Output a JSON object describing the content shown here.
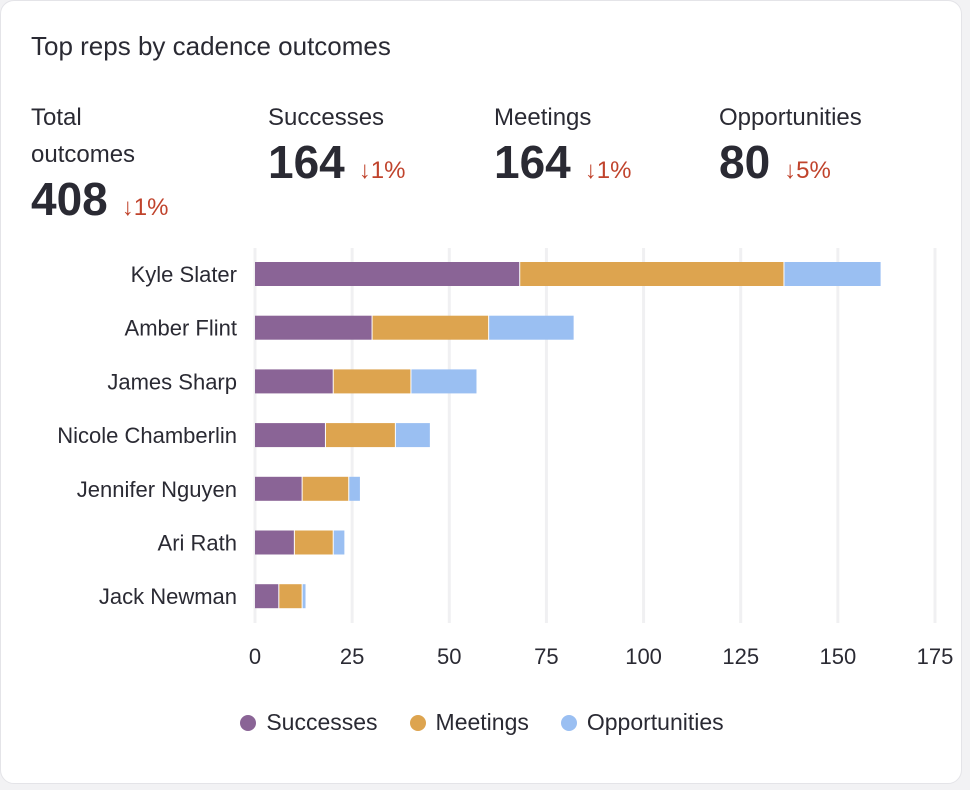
{
  "title": "Top reps by cadence outcomes",
  "stats": [
    {
      "label": "Total outcomes",
      "value": "408",
      "change": "↓1%"
    },
    {
      "label": "Successes",
      "value": "164",
      "change": "↓1%"
    },
    {
      "label": "Meetings",
      "value": "164",
      "change": "↓1%"
    },
    {
      "label": "Opportunities",
      "value": "80",
      "change": "↓5%"
    }
  ],
  "colors": {
    "successes": "#8a6496",
    "meetings": "#dda44f",
    "opportunities": "#9abff2",
    "negative": "#c0432c"
  },
  "chart_data": {
    "type": "bar",
    "orientation": "horizontal",
    "stacked": true,
    "categories": [
      "Kyle Slater",
      "Amber Flint",
      "James Sharp",
      "Nicole Chamberlin",
      "Jennifer Nguyen",
      "Ari Rath",
      "Jack Newman"
    ],
    "series": [
      {
        "name": "Successes",
        "color": "#8a6496",
        "values": [
          68,
          30,
          20,
          18,
          12,
          10,
          6
        ]
      },
      {
        "name": "Meetings",
        "color": "#dda44f",
        "values": [
          68,
          30,
          20,
          18,
          12,
          10,
          6
        ]
      },
      {
        "name": "Opportunities",
        "color": "#9abff2",
        "values": [
          25,
          22,
          17,
          9,
          3,
          3,
          1
        ]
      }
    ],
    "xlim": [
      0,
      175
    ],
    "xticks": [
      "0",
      "25",
      "50",
      "75",
      "100",
      "125",
      "150",
      "175"
    ],
    "grid": true,
    "legend": "bottom"
  }
}
